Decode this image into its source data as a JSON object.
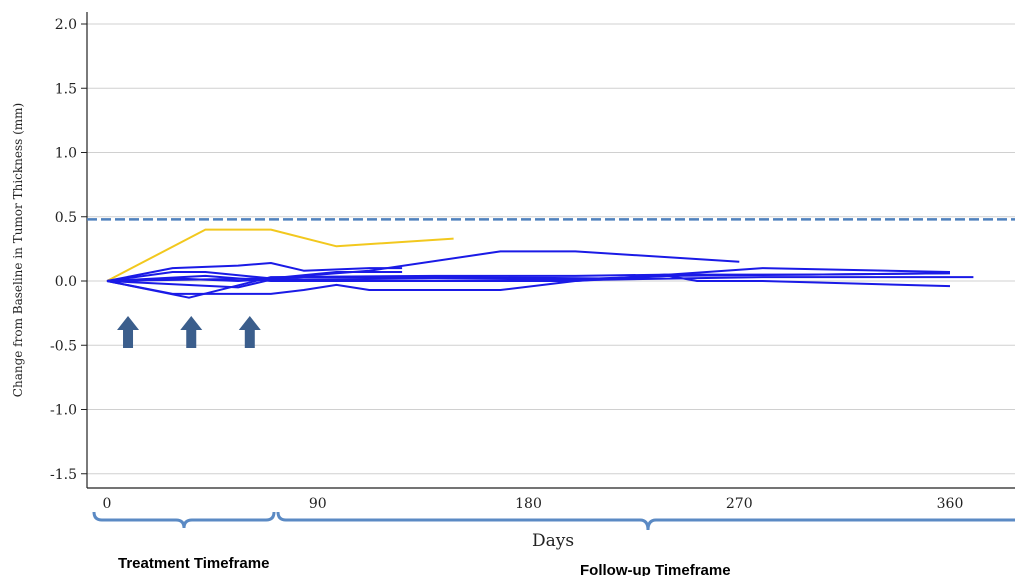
{
  "chart_data": {
    "type": "line",
    "xlabel": "Days",
    "ylabel": "Change from Baseline in Tumor Thickness (mm)",
    "xlim": [
      -3,
      370
    ],
    "ylim": [
      -1.6,
      2.1
    ],
    "x_ticks": [
      0,
      90,
      180,
      270,
      360
    ],
    "y_ticks": [
      2.0,
      1.5,
      1.0,
      0.5,
      0.0,
      -0.5,
      -1.0,
      -1.5
    ],
    "y_tick_labels": [
      "2.0",
      "1.5",
      "1.0",
      "0.5",
      "0.0",
      "-0.5",
      "-1.0",
      "-1.5"
    ],
    "grid": "horizontal",
    "threshold": {
      "y": 0.48,
      "style": "dashed",
      "color": "#4f81bd"
    },
    "colors": {
      "highlight": "#f2c81e",
      "series": "#1a1ae6",
      "arrow": "#3b5e8c",
      "brace": "#5b8ac4"
    },
    "series": [
      {
        "color": "#f2c81e",
        "x": [
          0,
          42,
          70,
          98,
          148
        ],
        "y": [
          0.0,
          0.4,
          0.4,
          0.27,
          0.33
        ]
      },
      {
        "color": "#1a1ae6",
        "x": [
          0,
          70,
          98,
          112,
          168,
          200,
          270
        ],
        "y": [
          0.0,
          0.02,
          0.06,
          0.08,
          0.23,
          0.23,
          0.15
        ]
      },
      {
        "color": "#1a1ae6",
        "x": [
          0,
          28,
          42,
          70,
          98,
          126
        ],
        "y": [
          0.0,
          0.07,
          0.07,
          0.02,
          0.07,
          0.07
        ]
      },
      {
        "color": "#1a1ae6",
        "x": [
          0,
          28,
          56,
          70,
          84,
          112,
          126
        ],
        "y": [
          0.0,
          0.1,
          0.12,
          0.14,
          0.08,
          0.1,
          0.1
        ]
      },
      {
        "color": "#1a1ae6",
        "x": [
          0,
          28,
          56,
          70,
          84,
          98,
          112,
          140,
          168,
          200,
          238,
          300,
          360
        ],
        "y": [
          0.0,
          -0.1,
          -0.1,
          -0.1,
          -0.07,
          -0.03,
          -0.07,
          -0.07,
          -0.07,
          0.0,
          0.05,
          0.05,
          0.06
        ]
      },
      {
        "color": "#1a1ae6",
        "x": [
          0,
          35,
          70,
          140,
          200,
          240,
          280,
          360
        ],
        "y": [
          0.0,
          -0.13,
          0.03,
          0.04,
          0.04,
          0.05,
          0.1,
          0.07
        ]
      },
      {
        "color": "#1a1ae6",
        "x": [
          0,
          42,
          70,
          140,
          200,
          240,
          252,
          280,
          360
        ],
        "y": [
          0.0,
          0.04,
          0.0,
          0.0,
          0.0,
          0.04,
          0.0,
          0.0,
          -0.04
        ]
      },
      {
        "color": "#1a1ae6",
        "x": [
          0,
          56,
          70,
          140,
          210,
          280,
          370
        ],
        "y": [
          0.0,
          -0.05,
          0.01,
          0.02,
          0.01,
          0.03,
          0.03
        ]
      },
      {
        "color": "#1a1ae6",
        "x": [
          0,
          28,
          56,
          84,
          140,
          210,
          240,
          300,
          360
        ],
        "y": [
          0.0,
          0.02,
          0.0,
          0.03,
          0.03,
          0.02,
          0.04,
          0.05,
          0.06
        ]
      }
    ],
    "arrows_at_days": [
      3,
      30,
      55
    ],
    "annotations": {
      "treatment": "Treatment Timeframe",
      "followup": "Follow-up Timeframe"
    }
  }
}
